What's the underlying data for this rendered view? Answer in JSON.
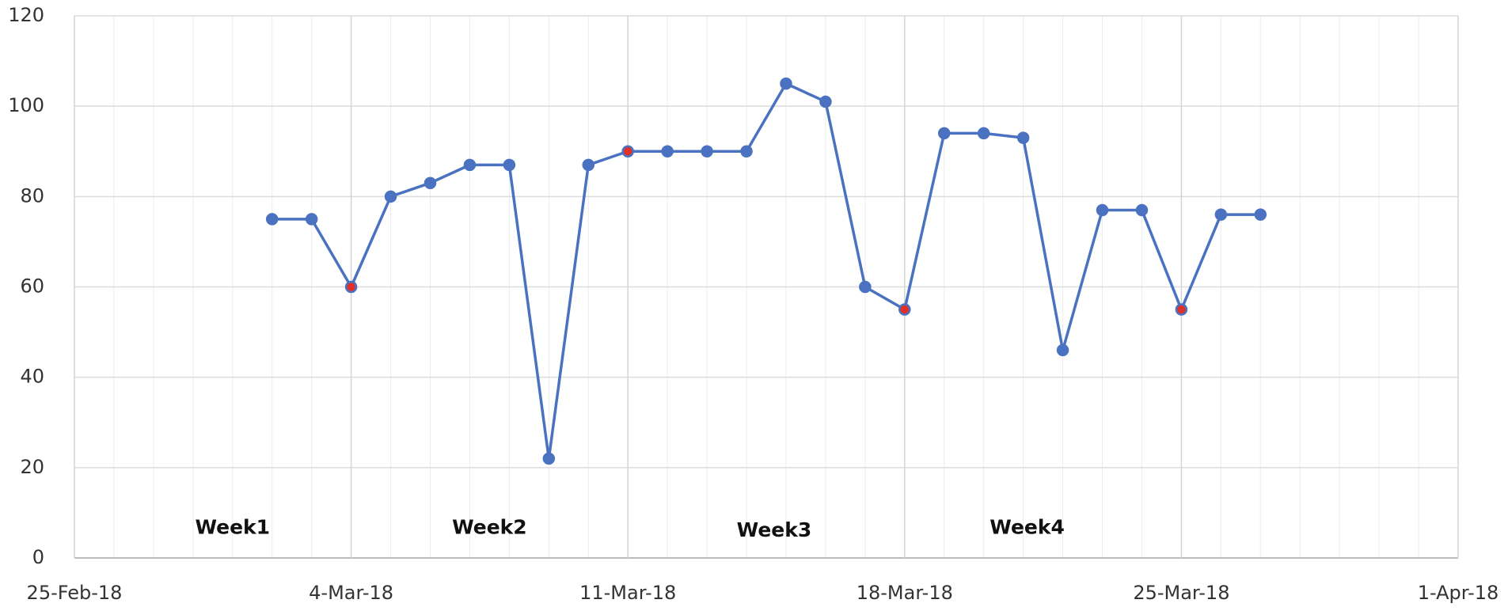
{
  "chart_data": {
    "type": "line",
    "x": [
      "2-Mar-18",
      "3-Mar-18",
      "4-Mar-18",
      "5-Mar-18",
      "6-Mar-18",
      "7-Mar-18",
      "8-Mar-18",
      "9-Mar-18",
      "10-Mar-18",
      "11-Mar-18",
      "12-Mar-18",
      "13-Mar-18",
      "14-Mar-18",
      "15-Mar-18",
      "16-Mar-18",
      "17-Mar-18",
      "18-Mar-18",
      "19-Mar-18",
      "20-Mar-18",
      "21-Mar-18",
      "22-Mar-18",
      "23-Mar-18",
      "24-Mar-18",
      "25-Mar-18",
      "26-Mar-18",
      "27-Mar-18"
    ],
    "series": [
      {
        "color": "#4a72c0",
        "values": [
          75,
          75,
          60,
          80,
          83,
          87,
          87,
          22,
          87,
          90,
          90,
          90,
          90,
          105,
          101,
          60,
          55,
          94,
          94,
          93,
          46,
          77,
          77,
          55,
          76,
          76
        ],
        "marker_colors": [
          "#4a72c0",
          "#4a72c0",
          "#e0302a",
          "#4a72c0",
          "#4a72c0",
          "#4a72c0",
          "#4a72c0",
          "#4a72c0",
          "#4a72c0",
          "#e0302a",
          "#4a72c0",
          "#4a72c0",
          "#4a72c0",
          "#4a72c0",
          "#4a72c0",
          "#4a72c0",
          "#e0302a",
          "#4a72c0",
          "#4a72c0",
          "#4a72c0",
          "#4a72c0",
          "#4a72c0",
          "#4a72c0",
          "#e0302a",
          "#4a72c0",
          "#4a72c0"
        ]
      }
    ],
    "xlim": [
      "25-Feb-18",
      "1-Apr-18"
    ],
    "xticks": [
      "25-Feb-18",
      "4-Mar-18",
      "11-Mar-18",
      "18-Mar-18",
      "25-Mar-18",
      "1-Apr-18"
    ],
    "ylim": [
      0,
      120
    ],
    "yticks": [
      0,
      20,
      40,
      60,
      80,
      100,
      120
    ],
    "grid": true,
    "annotations": [
      "Week1",
      "Week2",
      "Week3",
      "Week4"
    ]
  }
}
